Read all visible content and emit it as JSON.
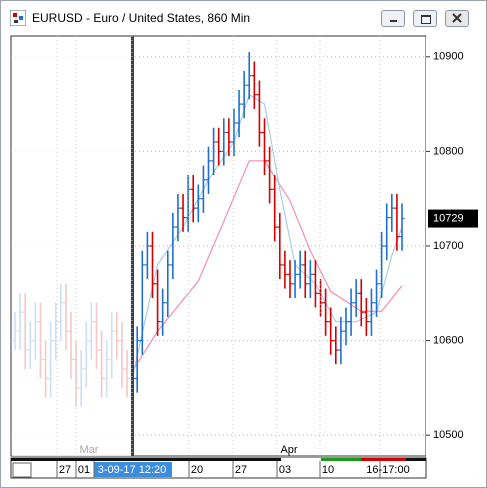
{
  "window": {
    "title": "EURUSD - Euro / United States, 860 Min"
  },
  "chart_data": {
    "type": "ohlc",
    "bars": [
      [
        10600,
        10630,
        10590,
        10610
      ],
      [
        10610,
        10650,
        10590,
        10630
      ],
      [
        10630,
        10650,
        10570,
        10590
      ],
      [
        10590,
        10620,
        10570,
        10600
      ],
      [
        10600,
        10640,
        10580,
        10620
      ],
      [
        10620,
        10640,
        10560,
        10580
      ],
      [
        10580,
        10600,
        10540,
        10560
      ],
      [
        10560,
        10620,
        10540,
        10600
      ],
      [
        10600,
        10640,
        10580,
        10620
      ],
      [
        10620,
        10660,
        10600,
        10640
      ],
      [
        10640,
        10660,
        10590,
        10610
      ],
      [
        10610,
        10630,
        10560,
        10580
      ],
      [
        10580,
        10600,
        10530,
        10550
      ],
      [
        10550,
        10590,
        10530,
        10570
      ],
      [
        10570,
        10620,
        10550,
        10600
      ],
      [
        10600,
        10640,
        10580,
        10620
      ],
      [
        10620,
        10640,
        10570,
        10590
      ],
      [
        10590,
        10610,
        10540,
        10560
      ],
      [
        10560,
        10600,
        10540,
        10580
      ],
      [
        10580,
        10630,
        10560,
        10610
      ],
      [
        10610,
        10630,
        10580,
        10600
      ],
      [
        10600,
        10620,
        10550,
        10570
      ],
      [
        10570,
        10590,
        10540,
        10560
      ],
      [
        10540,
        10575,
        10525,
        10560
      ],
      [
        10560,
        10615,
        10545,
        10600
      ],
      [
        10600,
        10695,
        10585,
        10680
      ],
      [
        10680,
        10715,
        10665,
        10700
      ],
      [
        10700,
        10715,
        10645,
        10660
      ],
      [
        10660,
        10675,
        10605,
        10620
      ],
      [
        10620,
        10655,
        10605,
        10640
      ],
      [
        10640,
        10695,
        10625,
        10680
      ],
      [
        10680,
        10735,
        10665,
        10720
      ],
      [
        10720,
        10755,
        10705,
        10740
      ],
      [
        10740,
        10755,
        10715,
        10730
      ],
      [
        10730,
        10775,
        10715,
        10760
      ],
      [
        10760,
        10775,
        10725,
        10740
      ],
      [
        10740,
        10765,
        10725,
        10750
      ],
      [
        10750,
        10785,
        10735,
        10770
      ],
      [
        10770,
        10805,
        10755,
        10790
      ],
      [
        10790,
        10825,
        10775,
        10810
      ],
      [
        10810,
        10825,
        10785,
        10800
      ],
      [
        10800,
        10835,
        10785,
        10820
      ],
      [
        10820,
        10835,
        10795,
        10810
      ],
      [
        10810,
        10845,
        10795,
        10830
      ],
      [
        10830,
        10865,
        10815,
        10850
      ],
      [
        10850,
        10885,
        10835,
        10870
      ],
      [
        10870,
        10905,
        10855,
        10880
      ],
      [
        10880,
        10895,
        10845,
        10860
      ],
      [
        10860,
        10875,
        10805,
        10820
      ],
      [
        10820,
        10835,
        10775,
        10790
      ],
      [
        10790,
        10805,
        10745,
        10760
      ],
      [
        10760,
        10775,
        10705,
        10720
      ],
      [
        10720,
        10735,
        10665,
        10680
      ],
      [
        10680,
        10695,
        10655,
        10670
      ],
      [
        10670,
        10685,
        10645,
        10660
      ],
      [
        10660,
        10685,
        10645,
        10670
      ],
      [
        10670,
        10695,
        10655,
        10680
      ],
      [
        10680,
        10695,
        10645,
        10660
      ],
      [
        10660,
        10685,
        10645,
        10670
      ],
      [
        10670,
        10685,
        10635,
        10650
      ],
      [
        10650,
        10665,
        10625,
        10640
      ],
      [
        10640,
        10655,
        10605,
        10620
      ],
      [
        10620,
        10635,
        10585,
        10600
      ],
      [
        10600,
        10615,
        10575,
        10590
      ],
      [
        10590,
        10625,
        10575,
        10610
      ],
      [
        10610,
        10635,
        10595,
        10620
      ],
      [
        10620,
        10655,
        10605,
        10640
      ],
      [
        10640,
        10665,
        10625,
        10650
      ],
      [
        10650,
        10665,
        10615,
        10630
      ],
      [
        10630,
        10645,
        10605,
        10620
      ],
      [
        10620,
        10655,
        10605,
        10640
      ],
      [
        10640,
        10675,
        10625,
        10660
      ],
      [
        10660,
        10715,
        10645,
        10700
      ],
      [
        10700,
        10745,
        10685,
        10730
      ],
      [
        10730,
        10755,
        10715,
        10740
      ],
      [
        10740,
        10755,
        10695,
        10710
      ],
      [
        10710,
        10745,
        10695,
        10729
      ]
    ],
    "up_color": "#1f6fd0",
    "down_color": "#d40000",
    "indicators": [
      {
        "color": "#f48fb1",
        "x": [
          23,
          28,
          36,
          41,
          46,
          49,
          54,
          58,
          62,
          68,
          72,
          76
        ],
        "values": [
          10567,
          10610,
          10663,
          10726,
          10790,
          10790,
          10748,
          10695,
          10652,
          10631,
          10631,
          10658
        ]
      },
      {
        "color": "#a9cce8",
        "x": [
          23,
          28,
          33,
          38,
          43,
          46,
          49,
          52,
          55,
          59,
          63,
          67,
          71,
          74,
          76
        ],
        "values": [
          10560,
          10680,
          10720,
          10770,
          10810,
          10860,
          10850,
          10760,
          10680,
          10660,
          10620,
          10620,
          10630,
          10690,
          10720
        ]
      }
    ],
    "ylim": [
      10478,
      10922
    ],
    "yticks": [
      10500,
      10600,
      10700,
      10800,
      10900
    ],
    "last_price": 10729,
    "x_labels": [
      "27",
      "01",
      "3-09-17 12:20",
      "20",
      "27",
      "03",
      "10",
      "16-17:00"
    ],
    "month_labels": [
      "Mar",
      "Apr"
    ],
    "grid": true
  }
}
